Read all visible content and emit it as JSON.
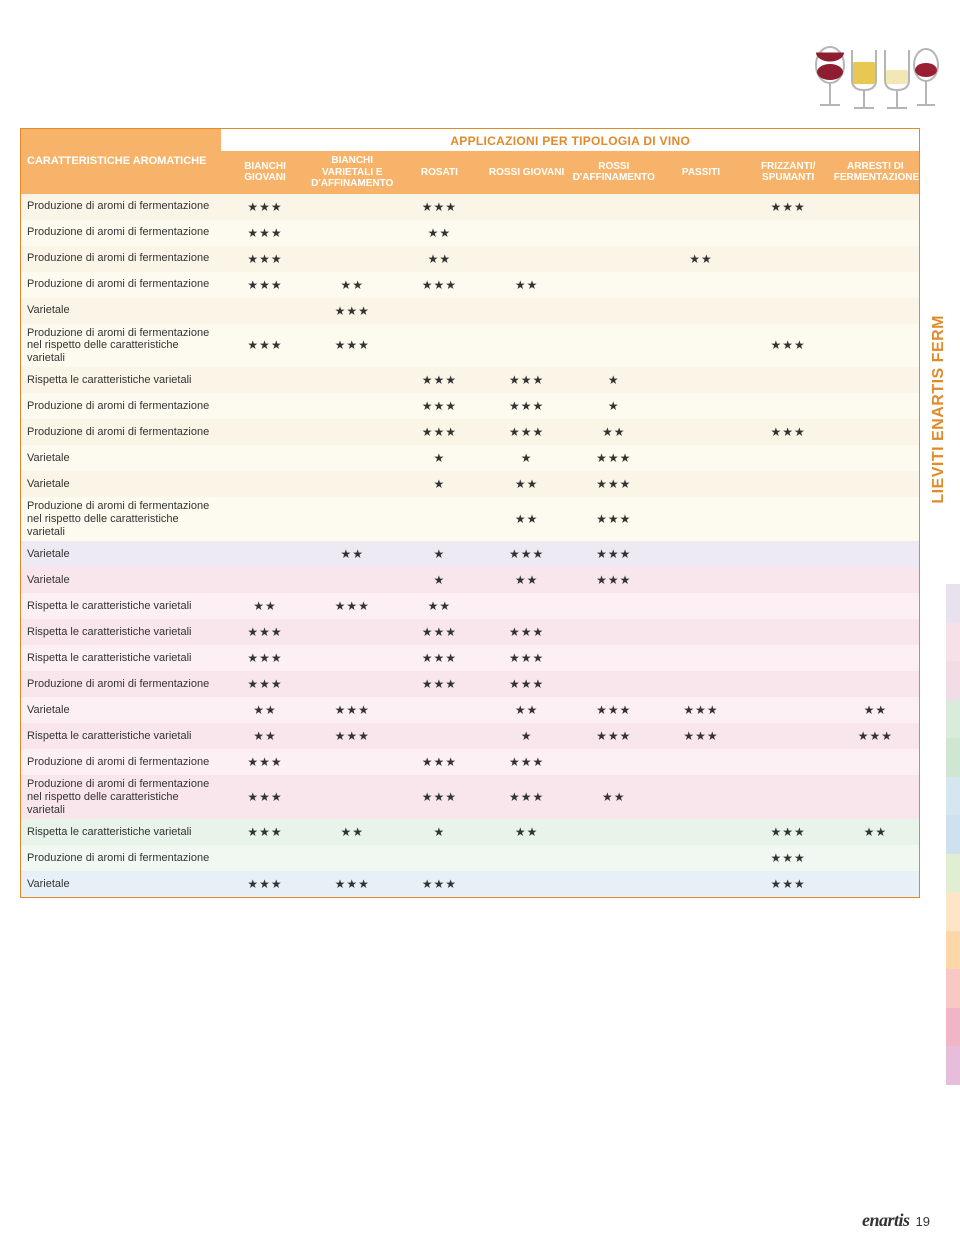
{
  "header": {
    "super_title": "APPLICAZIONI PER TIPOLOGIA DI VINO",
    "row_header": "CARATTERISTICHE AROMATICHE",
    "columns": [
      "BIANCHI GIOVANI",
      "BIANCHI VARIETALI E D'AFFINAMENTO",
      "ROSATI",
      "ROSSI GIOVANI",
      "ROSSI D'AFFINAMENTO",
      "PASSITI",
      "FRIZZANTI/ SPUMANTI",
      "ARRESTI DI FERMENTAZIONE"
    ]
  },
  "side_tab": "LIEVITI ENARTIS FERM",
  "footer": {
    "logo": "enartis",
    "page": "19"
  },
  "row_colors": {
    "ivory_a": "#faf5e6",
    "ivory_b": "#fdfaef",
    "lav_a": "#eeeaf3",
    "lav_b": "#f5f2f8",
    "rose_a": "#f8e6ec",
    "rose_b": "#fcf0f4",
    "mint_a": "#e8f3ea",
    "mint_b": "#f1f8f2",
    "blue_a": "#e8f0f7"
  },
  "rows": [
    {
      "bg": "ivory_a",
      "h": false,
      "label": "Produzione di aromi di fermentazione",
      "cells": [
        "★★★",
        "",
        "★★★",
        "",
        "",
        "",
        "★★★",
        ""
      ]
    },
    {
      "bg": "ivory_b",
      "h": false,
      "label": "Produzione di aromi di fermentazione",
      "cells": [
        "★★★",
        "",
        "★★",
        "",
        "",
        "",
        "",
        ""
      ]
    },
    {
      "bg": "ivory_a",
      "h": false,
      "label": "Produzione di aromi di fermentazione",
      "cells": [
        "★★★",
        "",
        "★★",
        "",
        "",
        "★★",
        "",
        ""
      ]
    },
    {
      "bg": "ivory_b",
      "h": false,
      "label": "Produzione di aromi di fermentazione",
      "cells": [
        "★★★",
        "★★",
        "★★★",
        "★★",
        "",
        "",
        "",
        ""
      ]
    },
    {
      "bg": "ivory_a",
      "h": false,
      "label": "Varietale",
      "cells": [
        "",
        "★★★",
        "",
        "",
        "",
        "",
        "",
        ""
      ]
    },
    {
      "bg": "ivory_b",
      "h": true,
      "label": "Produzione di aromi di fermentazione nel rispetto delle caratteristiche varietali",
      "cells": [
        "★★★",
        "★★★",
        "",
        "",
        "",
        "",
        "★★★",
        ""
      ]
    },
    {
      "bg": "ivory_a",
      "h": false,
      "label": "Rispetta le caratteristiche varietali",
      "cells": [
        "",
        "",
        "★★★",
        "★★★",
        "★",
        "",
        "",
        ""
      ]
    },
    {
      "bg": "ivory_b",
      "h": false,
      "label": "Produzione di aromi di fermentazione",
      "cells": [
        "",
        "",
        "★★★",
        "★★★",
        "★",
        "",
        "",
        ""
      ]
    },
    {
      "bg": "ivory_a",
      "h": false,
      "label": "Produzione di aromi di fermentazione",
      "cells": [
        "",
        "",
        "★★★",
        "★★★",
        "★★",
        "",
        "★★★",
        ""
      ]
    },
    {
      "bg": "ivory_b",
      "h": false,
      "label": "Varietale",
      "cells": [
        "",
        "",
        "★",
        "★",
        "★★★",
        "",
        "",
        ""
      ]
    },
    {
      "bg": "ivory_a",
      "h": false,
      "label": "Varietale",
      "cells": [
        "",
        "",
        "★",
        "★★",
        "★★★",
        "",
        "",
        ""
      ]
    },
    {
      "bg": "ivory_b",
      "h": true,
      "label": "Produzione di aromi di fermentazione nel rispetto delle caratteristiche varietali",
      "cells": [
        "",
        "",
        "",
        "★★",
        "★★★",
        "",
        "",
        ""
      ]
    },
    {
      "bg": "lav_a",
      "h": false,
      "label": "Varietale",
      "cells": [
        "",
        "★★",
        "★",
        "★★★",
        "★★★",
        "",
        "",
        ""
      ]
    },
    {
      "bg": "rose_a",
      "h": false,
      "label": "Varietale",
      "cells": [
        "",
        "",
        "★",
        "★★",
        "★★★",
        "",
        "",
        ""
      ]
    },
    {
      "bg": "rose_b",
      "h": false,
      "label": "Rispetta le caratteristiche varietali",
      "cells": [
        "★★",
        "★★★",
        "★★",
        "",
        "",
        "",
        "",
        ""
      ]
    },
    {
      "bg": "rose_a",
      "h": false,
      "label": "Rispetta le caratteristiche varietali",
      "cells": [
        "★★★",
        "",
        "★★★",
        "★★★",
        "",
        "",
        "",
        ""
      ]
    },
    {
      "bg": "rose_b",
      "h": false,
      "label": "Rispetta le caratteristiche varietali",
      "cells": [
        "★★★",
        "",
        "★★★",
        "★★★",
        "",
        "",
        "",
        ""
      ]
    },
    {
      "bg": "rose_a",
      "h": false,
      "label": "Produzione di aromi di fermentazione",
      "cells": [
        "★★★",
        "",
        "★★★",
        "★★★",
        "",
        "",
        "",
        ""
      ]
    },
    {
      "bg": "rose_b",
      "h": false,
      "label": "Varietale",
      "cells": [
        "★★",
        "★★★",
        "",
        "★★",
        "★★★",
        "★★★",
        "",
        "★★"
      ]
    },
    {
      "bg": "rose_a",
      "h": false,
      "label": "Rispetta le caratteristiche varietali",
      "cells": [
        "★★",
        "★★★",
        "",
        "★",
        "★★★",
        "★★★",
        "",
        "★★★"
      ]
    },
    {
      "bg": "rose_b",
      "h": false,
      "label": "Produzione di aromi di fermentazione",
      "cells": [
        "★★★",
        "",
        "★★★",
        "★★★",
        "",
        "",
        "",
        ""
      ]
    },
    {
      "bg": "rose_a",
      "h": true,
      "label": "Produzione di aromi di fermentazione nel rispetto delle caratteristiche varietali",
      "cells": [
        "★★★",
        "",
        "★★★",
        "★★★",
        "★★",
        "",
        "",
        ""
      ]
    },
    {
      "bg": "mint_a",
      "h": false,
      "label": "Rispetta le caratteristiche varietali",
      "cells": [
        "★★★",
        "★★",
        "★",
        "★★",
        "",
        "",
        "★★★",
        "★★"
      ]
    },
    {
      "bg": "mint_b",
      "h": false,
      "label": "Produzione di aromi di fermentazione",
      "cells": [
        "",
        "",
        "",
        "",
        "",
        "",
        "★★★",
        ""
      ]
    },
    {
      "bg": "blue_a",
      "h": false,
      "label": "Varietale",
      "cells": [
        "★★★",
        "★★★",
        "★★★",
        "",
        "",
        "",
        "★★★",
        ""
      ]
    }
  ],
  "swatch_colors": [
    "#e8e2ef",
    "#f7e1e9",
    "#f2dde6",
    "#d9ecdc",
    "#cfe6d3",
    "#d6e6f1",
    "#cfe1ee",
    "#e0eed1",
    "#fde6c8",
    "#fcd7a8",
    "#f7c8c4",
    "#efb6c6",
    "#e6bedb"
  ]
}
